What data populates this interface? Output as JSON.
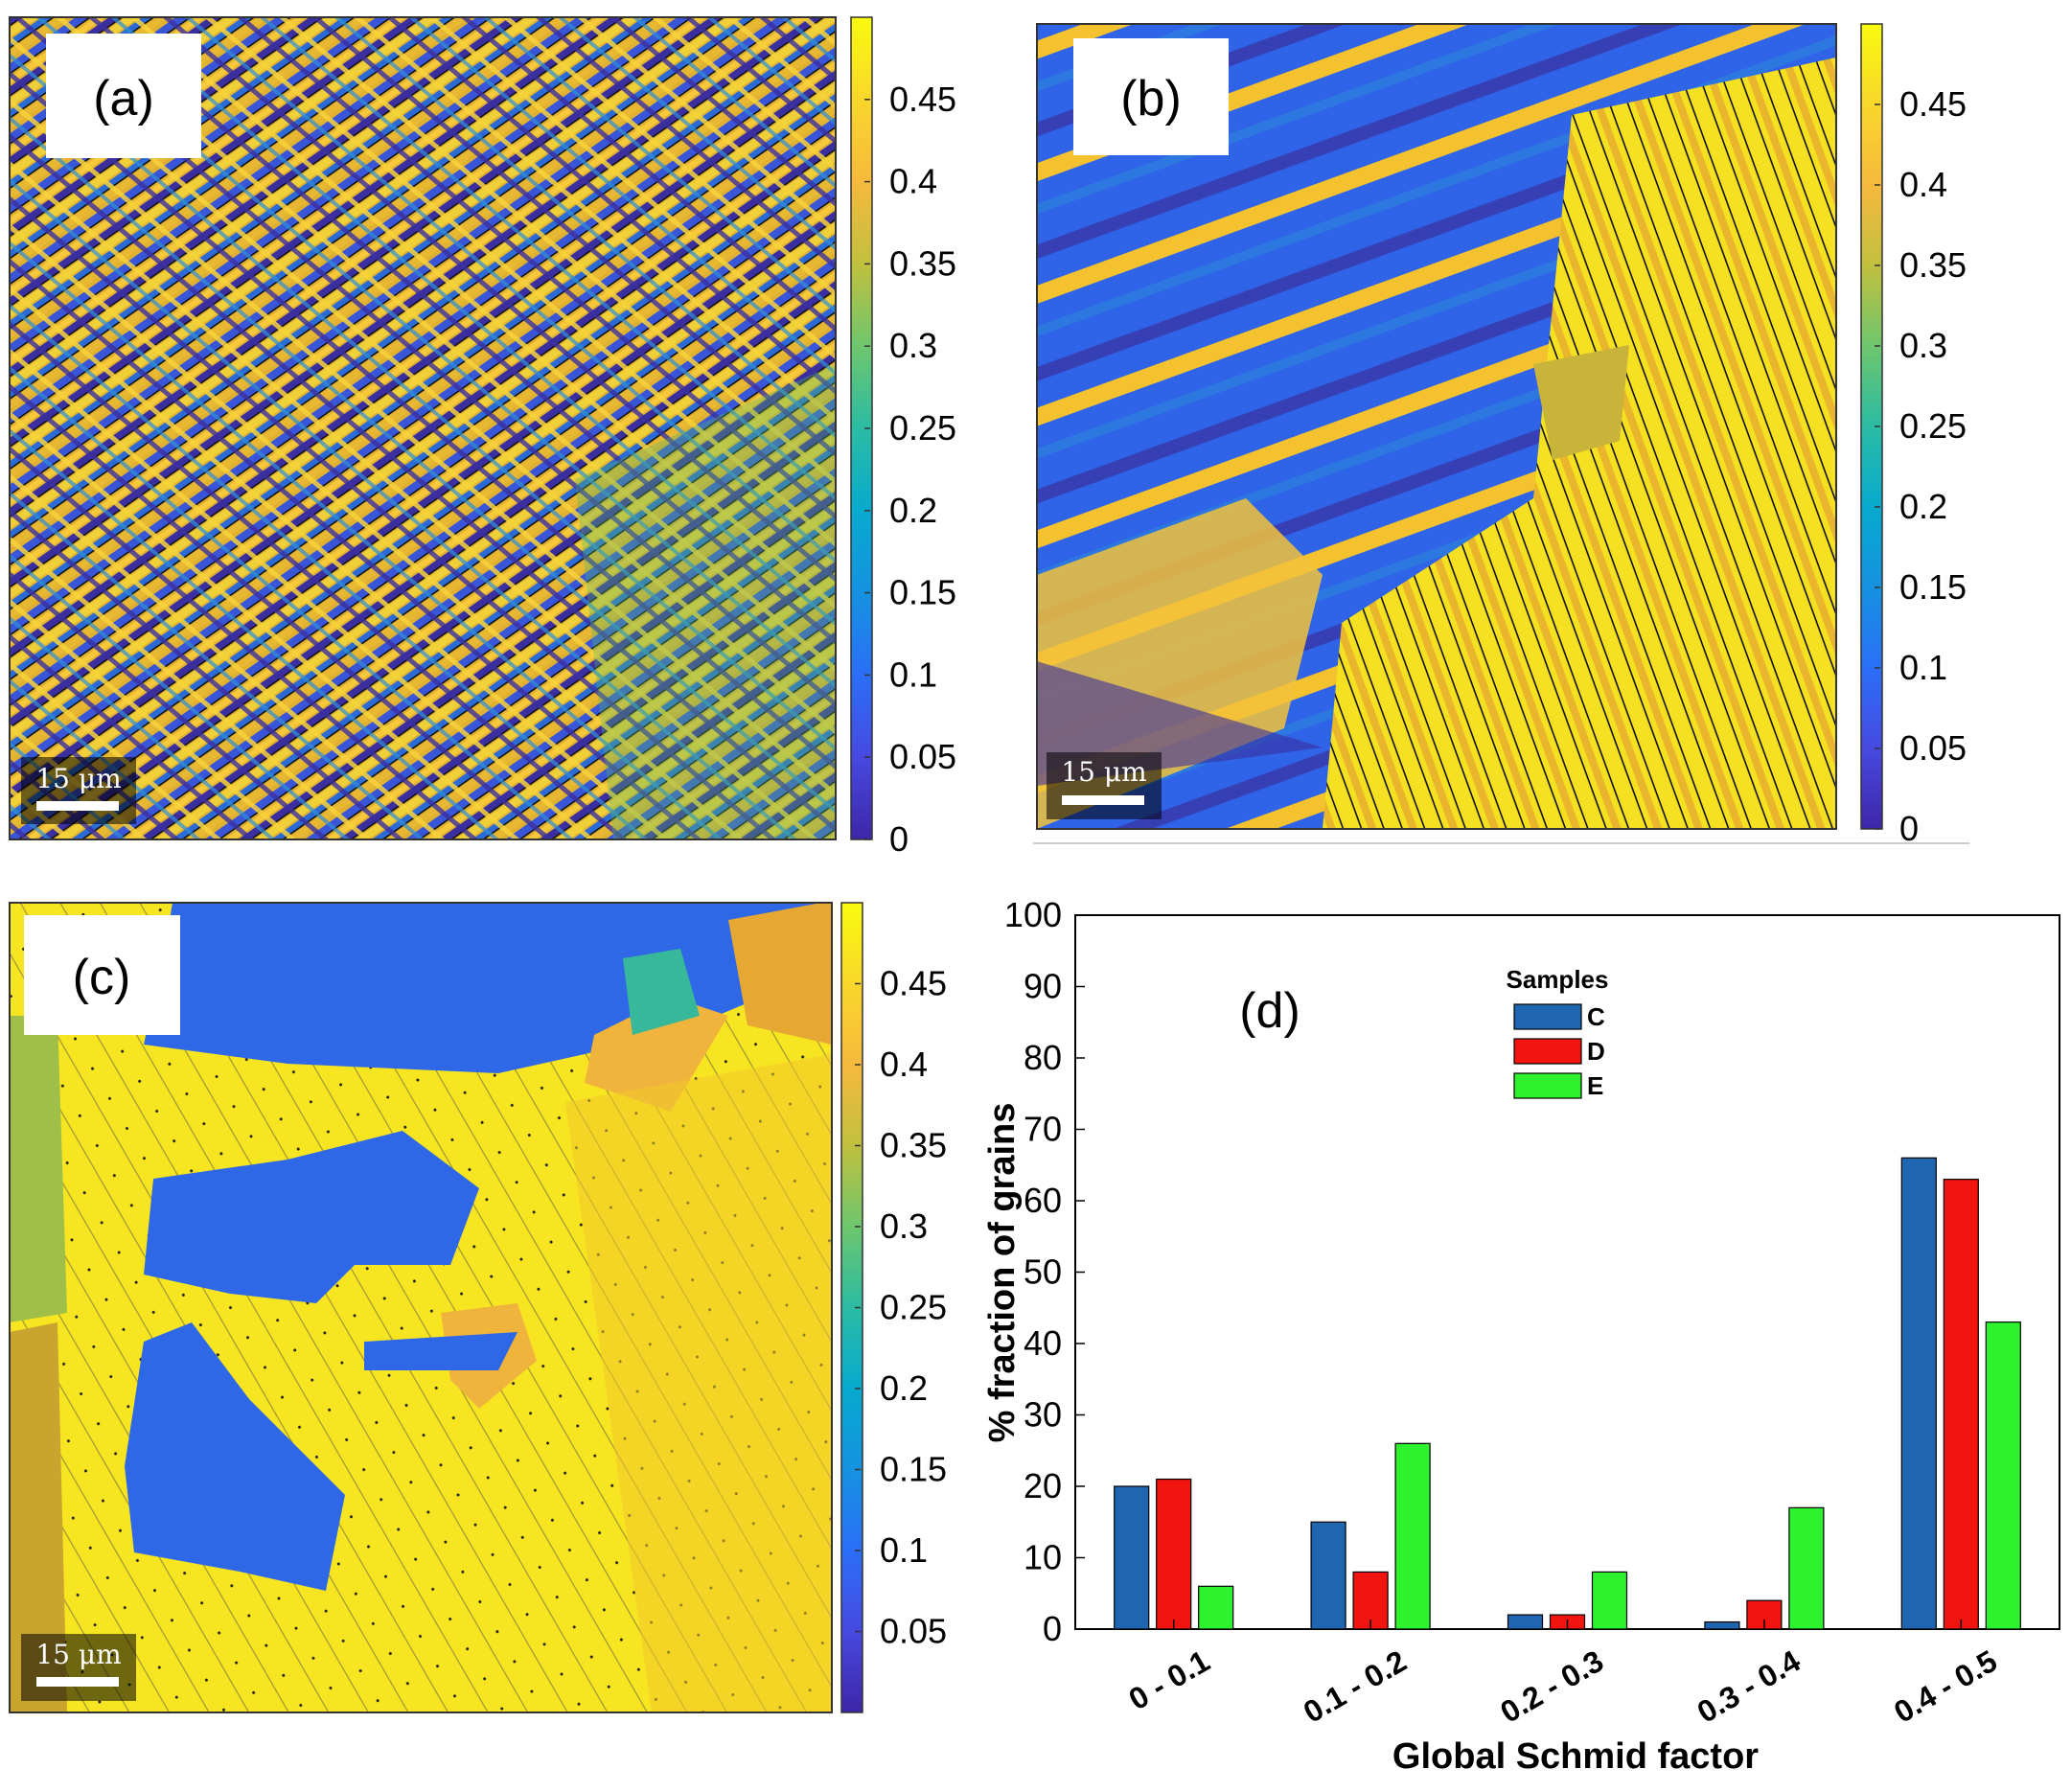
{
  "panels": [
    {
      "label": "(a)",
      "scale_bar": "15 μm",
      "colorbar_ticks": [
        "0.45",
        "0.4",
        "0.35",
        "0.3",
        "0.25",
        "0.2",
        "0.15",
        "0.1",
        "0.05",
        "0"
      ]
    },
    {
      "label": "(b)",
      "scale_bar": "15 μm",
      "colorbar_ticks": [
        "0.45",
        "0.4",
        "0.35",
        "0.3",
        "0.25",
        "0.2",
        "0.15",
        "0.1",
        "0.05",
        "0"
      ]
    },
    {
      "label": "(c)",
      "scale_bar": "15 μm",
      "colorbar_ticks": [
        "0.45",
        "0.4",
        "0.35",
        "0.3",
        "0.25",
        "0.2",
        "0.15",
        "0.1",
        "0.05"
      ]
    }
  ],
  "colormap": [
    "#3e26a8",
    "#4749e0",
    "#2b6ff8",
    "#1592e0",
    "#07aace",
    "#2bbca4",
    "#6ec66d",
    "#c1c03e",
    "#f6b93d",
    "#f9d72b",
    "#f9fb0e"
  ],
  "chart_data": {
    "type": "bar",
    "label": "(d)",
    "categories": [
      "0 - 0.1",
      "0.1 - 0.2",
      "0.2 - 0.3",
      "0.3 - 0.4",
      "0.4 - 0.5"
    ],
    "series": [
      {
        "name": "C",
        "color": "#1f66b0",
        "values": [
          20,
          15,
          2,
          1,
          66
        ]
      },
      {
        "name": "D",
        "color": "#f2140f",
        "values": [
          21,
          8,
          2,
          4,
          63
        ]
      },
      {
        "name": "E",
        "color": "#2ef22e",
        "values": [
          6,
          26,
          8,
          17,
          43
        ]
      }
    ],
    "legend_title": "Samples",
    "xlabel": "Global Schmid factor",
    "ylabel": "% fraction of grains",
    "ylim": [
      0,
      100
    ],
    "yticks": [
      "0",
      "10",
      "20",
      "30",
      "40",
      "50",
      "60",
      "70",
      "80",
      "90",
      "100"
    ],
    "grid": false,
    "legend_position": "top-center"
  }
}
